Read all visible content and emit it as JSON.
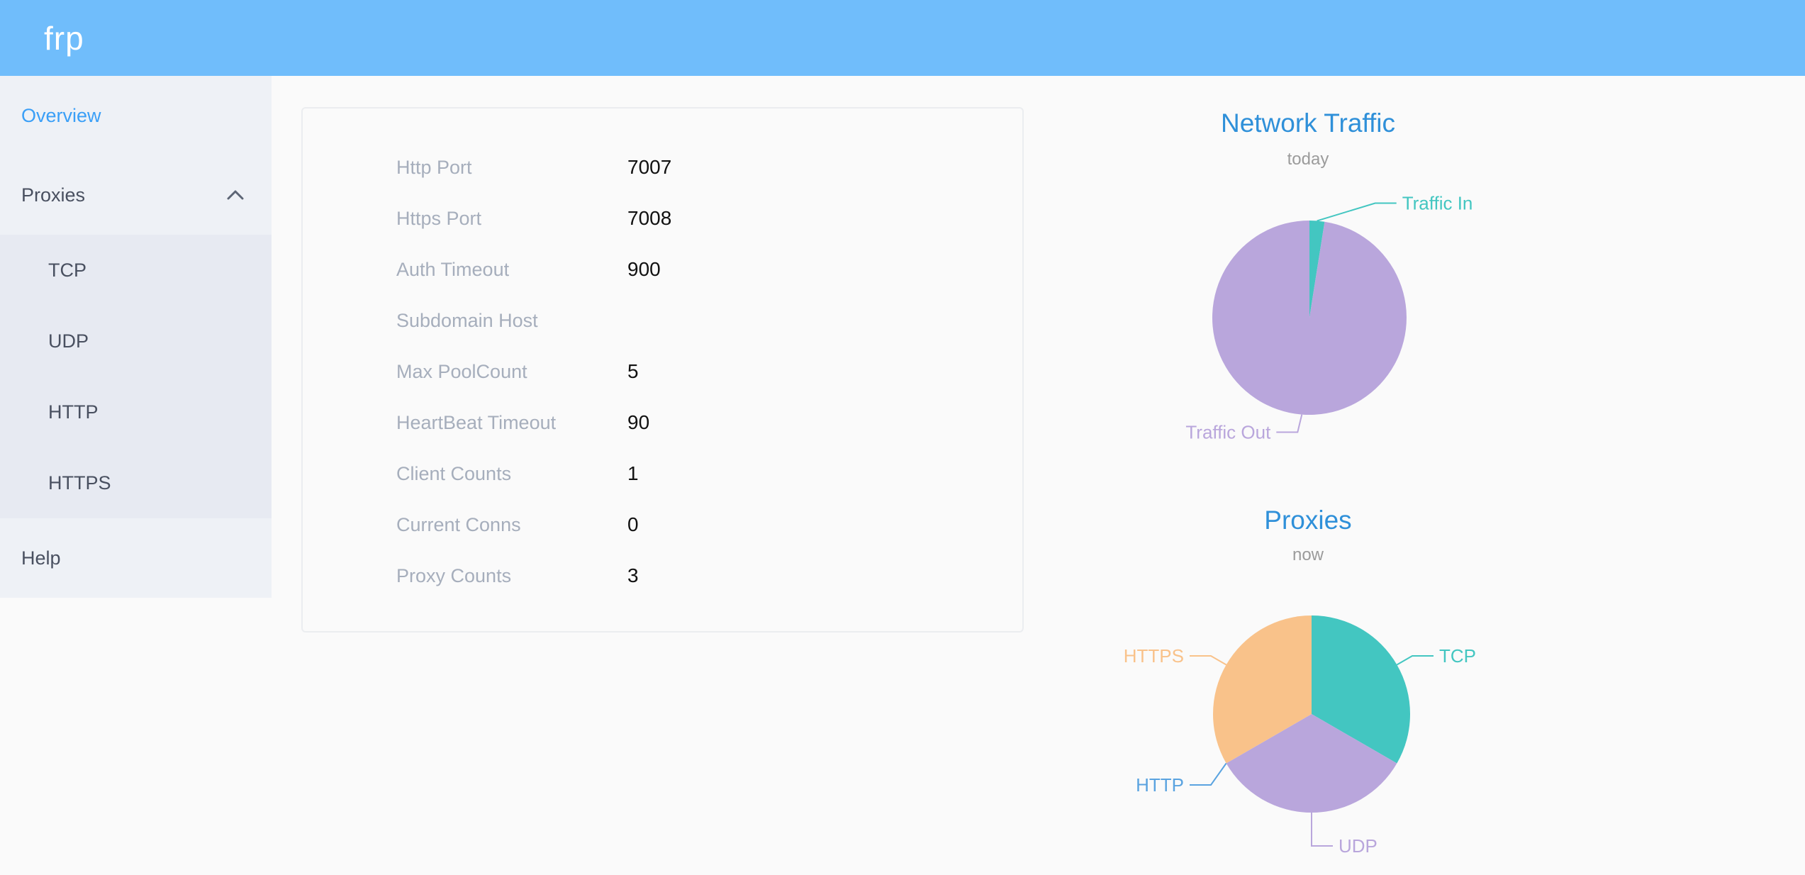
{
  "header": {
    "logo": "frp"
  },
  "sidebar": {
    "overview": "Overview",
    "proxies": "Proxies",
    "submenu": [
      "TCP",
      "UDP",
      "HTTP",
      "HTTPS"
    ],
    "help": "Help"
  },
  "server_info": {
    "rows": [
      {
        "label": "Http Port",
        "value": "7007"
      },
      {
        "label": "Https Port",
        "value": "7008"
      },
      {
        "label": "Auth Timeout",
        "value": "900"
      },
      {
        "label": "Subdomain Host",
        "value": ""
      },
      {
        "label": "Max PoolCount",
        "value": "5"
      },
      {
        "label": "HeartBeat Timeout",
        "value": "90"
      },
      {
        "label": "Client Counts",
        "value": "1"
      },
      {
        "label": "Current Conns",
        "value": "0"
      },
      {
        "label": "Proxy Counts",
        "value": "3"
      }
    ]
  },
  "chart_data": [
    {
      "type": "pie",
      "title": "Network Traffic",
      "subtitle": "today",
      "legend_position": "callout-labels",
      "series": [
        {
          "name": "Traffic In",
          "value": 2.5,
          "color": "#43c6c1"
        },
        {
          "name": "Traffic Out",
          "value": 97.5,
          "color": "#b9a6dc"
        }
      ]
    },
    {
      "type": "pie",
      "title": "Proxies",
      "subtitle": "now",
      "legend_position": "callout-labels",
      "series": [
        {
          "name": "TCP",
          "value": 1,
          "color": "#43c6c1"
        },
        {
          "name": "UDP",
          "value": 1,
          "color": "#b9a6dc"
        },
        {
          "name": "HTTP",
          "value": 0,
          "color": "#5aa3e0"
        },
        {
          "name": "HTTPS",
          "value": 1,
          "color": "#f9c28a"
        }
      ]
    }
  ],
  "colors": {
    "header_bg": "#70bdfb",
    "active_link": "#3a9ff7",
    "menu_text": "#495060",
    "sidebar_bg": "#eef1f6",
    "submenu_bg": "#e7eaf2",
    "title_blue": "#2f90d9",
    "subtitle_gray": "#9b9b9b",
    "label_gray": "#a6aebc",
    "value_black": "#111111",
    "card_border": "#ebedf0",
    "page_bg": "#fafafa"
  }
}
